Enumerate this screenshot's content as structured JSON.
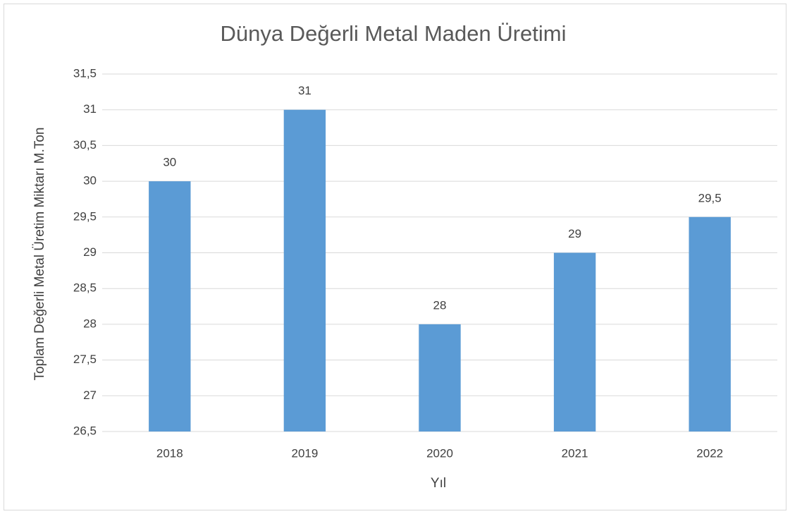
{
  "chart_data": {
    "type": "bar",
    "title": "Dünya Değerli Metal Maden Üretimi",
    "y_label": "Toplam Değerli Metal Üretim Miktarı M.Ton",
    "x_label": "Yıl",
    "categories": [
      "2018",
      "2019",
      "2020",
      "2021",
      "2022"
    ],
    "values": [
      30,
      31,
      28,
      29,
      29.5
    ],
    "value_labels": [
      "30",
      "31",
      "28",
      "29",
      "29,5"
    ],
    "color": "#5b9bd5",
    "ylim": [
      26.5,
      31.5
    ],
    "yticks": [
      {
        "value": 26.5,
        "label": "26,5"
      },
      27,
      {
        "value": 27.5,
        "label": "27,5"
      },
      28,
      {
        "value": 28.5,
        "label": "28,5"
      },
      29,
      {
        "value": 29.5,
        "label": "29,5"
      },
      30,
      {
        "value": 30.5,
        "label": "30,5"
      },
      31,
      {
        "value": 31.5,
        "label": "31,5"
      }
    ],
    "grid": true
  }
}
